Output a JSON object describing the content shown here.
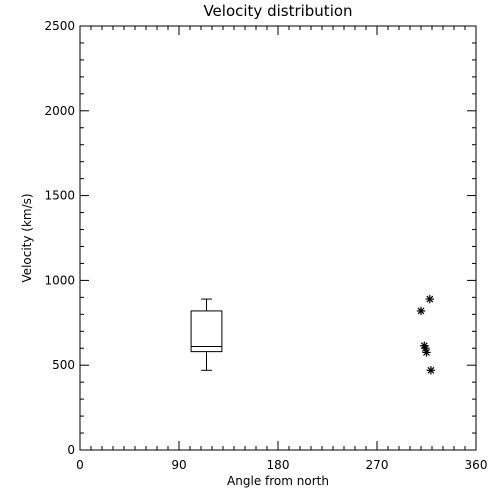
{
  "chart_data": {
    "type": "box+scatter",
    "title": "Velocity distribution",
    "xlabel": "Angle from north",
    "ylabel": "Velocity (km/s)",
    "xlim": [
      0,
      360
    ],
    "ylim": [
      0,
      2500
    ],
    "xticks": [
      0,
      90,
      180,
      270,
      360
    ],
    "yticks": [
      0,
      500,
      1000,
      1500,
      2000,
      2500
    ],
    "x_minor_step": 10,
    "y_minor_step": 100,
    "grid": false,
    "box": {
      "x": 115,
      "width": 28,
      "min": 470,
      "q1": 580,
      "median": 610,
      "q3": 820,
      "max": 890
    },
    "points": [
      {
        "x": 310,
        "y": 820
      },
      {
        "x": 313,
        "y": 615
      },
      {
        "x": 314,
        "y": 600
      },
      {
        "x": 315,
        "y": 575
      },
      {
        "x": 318,
        "y": 890
      },
      {
        "x": 319,
        "y": 470
      }
    ]
  }
}
